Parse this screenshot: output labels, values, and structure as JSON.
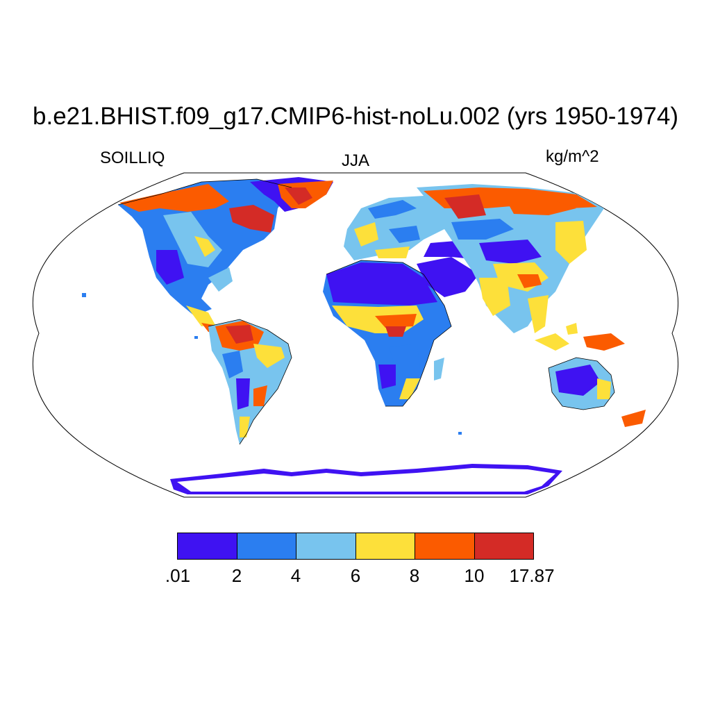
{
  "title": "b.e21.BHIST.f09_g17.CMIP6-hist-noLu.002 (yrs 1950-1974)",
  "left_label": "SOILLIQ",
  "center_label": "JJA",
  "right_label": "kg/m^2",
  "colorbar": {
    "levels": [
      ".01",
      "2",
      "4",
      "6",
      "8",
      "10",
      "17.87"
    ],
    "colors": [
      "#3f12f2",
      "#2b7ef0",
      "#78c4ee",
      "#fde03a",
      "#fb5b00",
      "#d42b26"
    ]
  },
  "map": {
    "projection": "Robinson",
    "ocean_color": "#ffffff",
    "coast_color": "#000000"
  }
}
